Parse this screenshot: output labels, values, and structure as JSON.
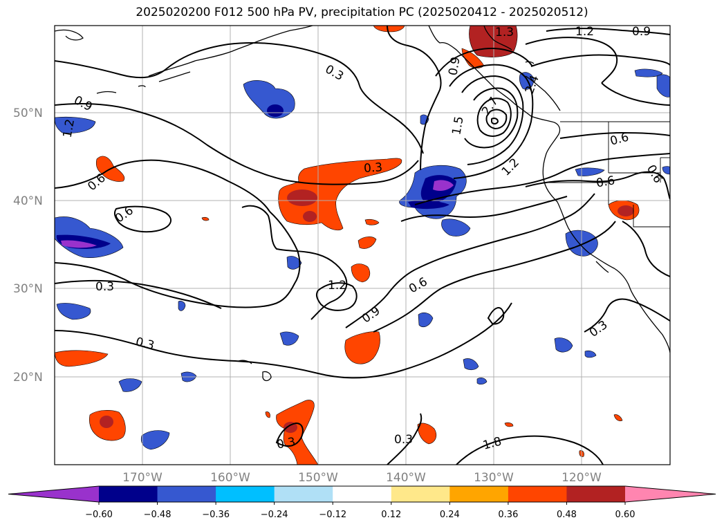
{
  "title": "2025020200 F012 500 hPa PV, precipitation PC (2025020412 - 2025020512)",
  "lon_ticks": [
    "170°W",
    "160°W",
    "150°W",
    "140°W",
    "130°W",
    "120°W"
  ],
  "lat_ticks": [
    "50°N",
    "40°N",
    "30°N",
    "20°N"
  ],
  "contour_labels": [
    {
      "id": "cl-1",
      "text": "0.3"
    },
    {
      "id": "cl-2",
      "text": "0.9"
    },
    {
      "id": "cl-3",
      "text": "1.2"
    },
    {
      "id": "cl-4",
      "text": "0.6"
    },
    {
      "id": "cl-5",
      "text": "0.6"
    },
    {
      "id": "cl-6",
      "text": "0.3"
    },
    {
      "id": "cl-7",
      "text": "0.3"
    },
    {
      "id": "cl-8",
      "text": "1.2"
    },
    {
      "id": "cl-9",
      "text": "0.9"
    },
    {
      "id": "cl-10",
      "text": "0.6"
    },
    {
      "id": "cl-11",
      "text": "0.3"
    },
    {
      "id": "cl-12",
      "text": "0.3"
    },
    {
      "id": "cl-13",
      "text": "0.3"
    },
    {
      "id": "cl-14",
      "text": "0.9"
    },
    {
      "id": "cl-15",
      "text": "1.5"
    },
    {
      "id": "cl-16",
      "text": "2.7"
    },
    {
      "id": "cl-17",
      "text": "1.2"
    },
    {
      "id": "cl-18",
      "text": "1.3"
    },
    {
      "id": "cl-19",
      "text": "1.2"
    },
    {
      "id": "cl-20",
      "text": "0.9"
    },
    {
      "id": "cl-21",
      "text": "0.6"
    },
    {
      "id": "cl-22",
      "text": "0.6"
    },
    {
      "id": "cl-23",
      "text": "0.6"
    },
    {
      "id": "cl-24",
      "text": "0.3"
    },
    {
      "id": "cl-25",
      "text": "1.8"
    },
    {
      "id": "cl-26",
      "text": "2.4"
    }
  ],
  "colorbar": {
    "tick_labels": [
      "−0.60",
      "−0.48",
      "−0.36",
      "−0.24",
      "−0.12",
      "0.12",
      "0.24",
      "0.36",
      "0.48",
      "0.60"
    ],
    "colors": [
      "#9932cc",
      "#00008b",
      "#3658d0",
      "#00bfff",
      "#b0e0f6",
      "#ffffff",
      "#ffe88a",
      "#ffa500",
      "#ff4500",
      "#b22222",
      "#ff85b0"
    ]
  },
  "shading_colors": {
    "neg_1": "#b0e0f6",
    "neg_2": "#00bfff",
    "neg_3": "#3658d0",
    "neg_4": "#00008b",
    "neg_5": "#9932cc",
    "pos_1": "#ffe88a",
    "pos_2": "#ffa500",
    "pos_3": "#ff4500",
    "pos_4": "#b22222"
  }
}
